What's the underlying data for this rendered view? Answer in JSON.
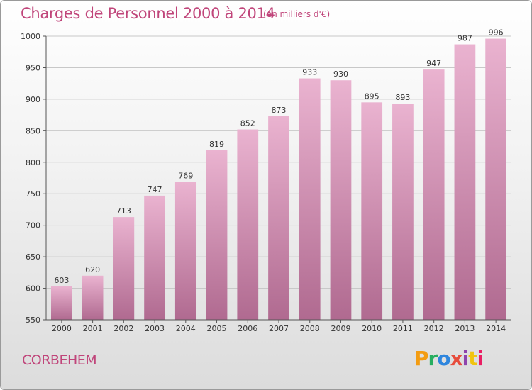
{
  "title": "Charges de Personnel 2000 à 2014",
  "unit": "(en milliers d'€)",
  "commune": "CORBEHEM",
  "logo": {
    "letters": [
      "P",
      "r",
      "o",
      "x",
      "i",
      "t",
      "i"
    ],
    "colors": [
      "#f39c12",
      "#27ae60",
      "#2e86de",
      "#e74c3c",
      "#8e44ad",
      "#f1c40f",
      "#e91e63"
    ]
  },
  "colors": {
    "bar": "#d98fb8",
    "bar_dark": "#b36891",
    "text_accent": "#c0457a"
  },
  "chart_data": {
    "type": "bar",
    "categories": [
      "2000",
      "2001",
      "2002",
      "2003",
      "2004",
      "2005",
      "2006",
      "2007",
      "2008",
      "2009",
      "2010",
      "2011",
      "2012",
      "2013",
      "2014"
    ],
    "values": [
      603,
      620,
      713,
      747,
      769,
      819,
      852,
      873,
      933,
      930,
      895,
      893,
      947,
      987,
      996
    ],
    "title": "Charges de Personnel 2000 à 2014",
    "xlabel": "",
    "ylabel": "",
    "ylim": [
      550,
      1000
    ],
    "yticks": [
      550,
      600,
      650,
      700,
      750,
      800,
      850,
      900,
      950,
      1000
    ],
    "grid": true,
    "data_labels": true
  }
}
